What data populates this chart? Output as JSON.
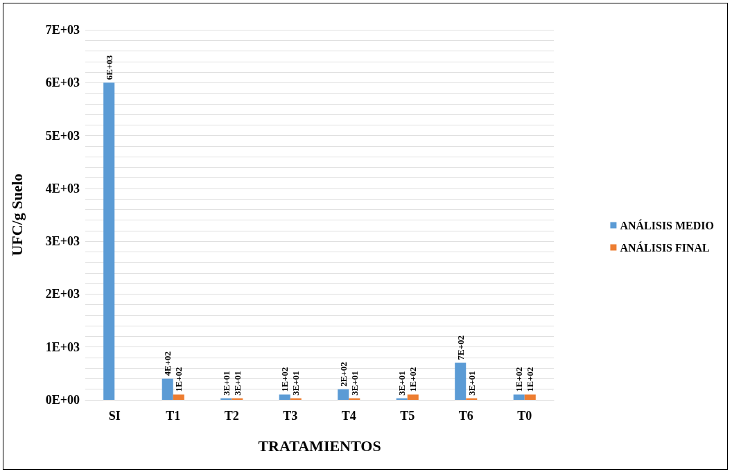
{
  "chart_data": {
    "type": "bar",
    "xlabel": "TRATAMIENTOS",
    "ylabel": "UFC/g Suelo",
    "categories": [
      "SI",
      "T1",
      "T2",
      "T3",
      "T4",
      "T5",
      "T6",
      "T0"
    ],
    "series": [
      {
        "name": "ANÁLISIS MEDIO",
        "color": "#5b9bd5",
        "values": [
          6000,
          400,
          30,
          100,
          200,
          30,
          700,
          100
        ],
        "value_labels": [
          "6E+03",
          "4E+02",
          "3E+01",
          "1E+02",
          "2E+02",
          "3E+01",
          "7E+02",
          "1E+02"
        ]
      },
      {
        "name": "ANÁLISIS FINAL",
        "color": "#ed7d31",
        "values": [
          null,
          100,
          30,
          30,
          30,
          100,
          30,
          100
        ],
        "value_labels": [
          null,
          "1E+02",
          "3E+01",
          "3E+01",
          "3E+01",
          "1E+02",
          "3E+01",
          "1E+02"
        ]
      }
    ],
    "ylim": [
      0,
      7000
    ],
    "yticks": [
      {
        "value": 0,
        "label": "0E+00"
      },
      {
        "value": 200,
        "label": null
      },
      {
        "value": 400,
        "label": null
      },
      {
        "value": 600,
        "label": null
      },
      {
        "value": 800,
        "label": null
      },
      {
        "value": 1000,
        "label": "1E+03"
      },
      {
        "value": 1200,
        "label": null
      },
      {
        "value": 1400,
        "label": null
      },
      {
        "value": 1600,
        "label": null
      },
      {
        "value": 1800,
        "label": null
      },
      {
        "value": 2000,
        "label": "2E+03"
      },
      {
        "value": 2200,
        "label": null
      },
      {
        "value": 2400,
        "label": null
      },
      {
        "value": 2600,
        "label": null
      },
      {
        "value": 2800,
        "label": null
      },
      {
        "value": 3000,
        "label": "3E+03"
      },
      {
        "value": 3200,
        "label": null
      },
      {
        "value": 3400,
        "label": null
      },
      {
        "value": 3600,
        "label": null
      },
      {
        "value": 3800,
        "label": null
      },
      {
        "value": 4000,
        "label": "4E+03"
      },
      {
        "value": 4200,
        "label": null
      },
      {
        "value": 4400,
        "label": null
      },
      {
        "value": 4600,
        "label": null
      },
      {
        "value": 4800,
        "label": null
      },
      {
        "value": 5000,
        "label": "5E+03"
      },
      {
        "value": 5200,
        "label": null
      },
      {
        "value": 5400,
        "label": null
      },
      {
        "value": 5600,
        "label": null
      },
      {
        "value": 5800,
        "label": null
      },
      {
        "value": 6000,
        "label": "6E+03"
      },
      {
        "value": 6200,
        "label": null
      },
      {
        "value": 6400,
        "label": null
      },
      {
        "value": 6600,
        "label": null
      },
      {
        "value": 6800,
        "label": null
      },
      {
        "value": 7000,
        "label": "7E+03"
      }
    ],
    "grid": true,
    "legend": "right"
  }
}
